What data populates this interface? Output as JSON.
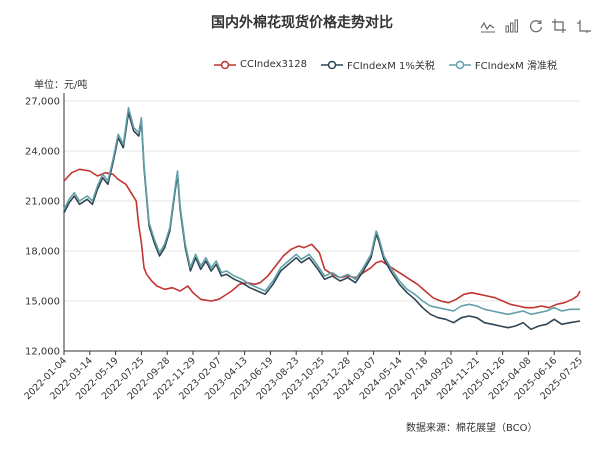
{
  "title": "国内外棉花现货价格走势对比",
  "toolbox": [
    "line-chart-icon",
    "bar-chart-icon",
    "restore-icon",
    "crop-icon",
    "crop-corner-icon"
  ],
  "unit_label": "单位：元/吨",
  "source_label": "数据来源：棉花展望（BCO）",
  "chart_data": {
    "type": "line",
    "title": "国内外棉花现货价格走势对比",
    "ylabel": "单位：元/吨",
    "ylim": [
      12000,
      27000
    ],
    "yticks": [
      12000,
      15000,
      18000,
      21000,
      24000,
      27000
    ],
    "ytick_labels": [
      "12,000",
      "15,000",
      "18,000",
      "21,000",
      "24,000",
      "27,000"
    ],
    "grid": true,
    "legend": "top-right",
    "x_tick_labels": [
      "2022-01-04",
      "2022-03-14",
      "2022-05-19",
      "2022-07-25",
      "2022-09-28",
      "2022-11-29",
      "2023-02-07",
      "2023-04-13",
      "2023-06-19",
      "2023-08-23",
      "2023-10-25",
      "2023-12-28",
      "2024-03-07",
      "2024-05-14",
      "2024-07-18",
      "2024-09-20",
      "2024-11-21",
      "2025-01-26",
      "2025-04-08",
      "2025-06-16",
      "2025-07-25"
    ],
    "series": [
      {
        "name": "CCIndex3128",
        "color": "#c23531",
        "points": [
          [
            0,
            22200
          ],
          [
            0.3,
            22700
          ],
          [
            0.6,
            22900
          ],
          [
            1,
            22800
          ],
          [
            1.3,
            22500
          ],
          [
            1.6,
            22700
          ],
          [
            1.9,
            22600
          ],
          [
            2.1,
            22300
          ],
          [
            2.4,
            22000
          ],
          [
            2.6,
            21500
          ],
          [
            2.8,
            21000
          ],
          [
            2.9,
            19500
          ],
          [
            3.0,
            18500
          ],
          [
            3.1,
            17000
          ],
          [
            3.2,
            16600
          ],
          [
            3.4,
            16200
          ],
          [
            3.6,
            15900
          ],
          [
            3.9,
            15700
          ],
          [
            4.2,
            15800
          ],
          [
            4.5,
            15600
          ],
          [
            4.8,
            15900
          ],
          [
            5.0,
            15500
          ],
          [
            5.3,
            15100
          ],
          [
            5.7,
            15000
          ],
          [
            6.0,
            15100
          ],
          [
            6.2,
            15300
          ],
          [
            6.5,
            15600
          ],
          [
            6.8,
            16000
          ],
          [
            7.1,
            16100
          ],
          [
            7.4,
            16000
          ],
          [
            7.6,
            16100
          ],
          [
            7.9,
            16500
          ],
          [
            8.2,
            17100
          ],
          [
            8.5,
            17700
          ],
          [
            8.8,
            18100
          ],
          [
            9.1,
            18300
          ],
          [
            9.3,
            18200
          ],
          [
            9.6,
            18400
          ],
          [
            9.9,
            17900
          ],
          [
            10.1,
            16900
          ],
          [
            10.4,
            16600
          ],
          [
            10.7,
            16400
          ],
          [
            11.0,
            16500
          ],
          [
            11.3,
            16400
          ],
          [
            11.6,
            16700
          ],
          [
            11.9,
            17000
          ],
          [
            12.1,
            17300
          ],
          [
            12.3,
            17400
          ],
          [
            12.5,
            17200
          ],
          [
            12.8,
            16900
          ],
          [
            13.1,
            16600
          ],
          [
            13.4,
            16300
          ],
          [
            13.7,
            16000
          ],
          [
            14.0,
            15600
          ],
          [
            14.3,
            15200
          ],
          [
            14.6,
            15000
          ],
          [
            14.9,
            14900
          ],
          [
            15.2,
            15100
          ],
          [
            15.5,
            15400
          ],
          [
            15.8,
            15500
          ],
          [
            16.1,
            15400
          ],
          [
            16.4,
            15300
          ],
          [
            16.7,
            15200
          ],
          [
            17.0,
            15000
          ],
          [
            17.3,
            14800
          ],
          [
            17.6,
            14700
          ],
          [
            17.9,
            14600
          ],
          [
            18.2,
            14600
          ],
          [
            18.5,
            14700
          ],
          [
            18.8,
            14600
          ],
          [
            19.1,
            14800
          ],
          [
            19.4,
            14900
          ],
          [
            19.7,
            15100
          ],
          [
            19.9,
            15300
          ],
          [
            20.0,
            15600
          ]
        ]
      },
      {
        "name": "FCIndexM 1%关税",
        "color": "#2f4554",
        "points": [
          [
            0,
            20300
          ],
          [
            0.2,
            20900
          ],
          [
            0.4,
            21300
          ],
          [
            0.6,
            20800
          ],
          [
            0.9,
            21100
          ],
          [
            1.1,
            20800
          ],
          [
            1.3,
            21700
          ],
          [
            1.5,
            22400
          ],
          [
            1.7,
            22000
          ],
          [
            1.9,
            23300
          ],
          [
            2.1,
            24800
          ],
          [
            2.3,
            24200
          ],
          [
            2.5,
            26300
          ],
          [
            2.7,
            25200
          ],
          [
            2.9,
            24900
          ],
          [
            3.0,
            25800
          ],
          [
            3.1,
            23000
          ],
          [
            3.2,
            21200
          ],
          [
            3.3,
            19500
          ],
          [
            3.5,
            18500
          ],
          [
            3.7,
            17700
          ],
          [
            3.9,
            18200
          ],
          [
            4.1,
            19200
          ],
          [
            4.3,
            21500
          ],
          [
            4.4,
            22600
          ],
          [
            4.5,
            20500
          ],
          [
            4.7,
            18200
          ],
          [
            4.9,
            16800
          ],
          [
            5.1,
            17600
          ],
          [
            5.3,
            16900
          ],
          [
            5.5,
            17400
          ],
          [
            5.7,
            16800
          ],
          [
            5.9,
            17200
          ],
          [
            6.1,
            16500
          ],
          [
            6.3,
            16600
          ],
          [
            6.6,
            16300
          ],
          [
            6.9,
            16100
          ],
          [
            7.2,
            15800
          ],
          [
            7.5,
            15600
          ],
          [
            7.8,
            15400
          ],
          [
            8.1,
            16000
          ],
          [
            8.4,
            16800
          ],
          [
            8.7,
            17200
          ],
          [
            9.0,
            17600
          ],
          [
            9.2,
            17300
          ],
          [
            9.5,
            17600
          ],
          [
            9.8,
            17000
          ],
          [
            10.1,
            16300
          ],
          [
            10.4,
            16500
          ],
          [
            10.7,
            16200
          ],
          [
            11.0,
            16400
          ],
          [
            11.3,
            16100
          ],
          [
            11.6,
            16800
          ],
          [
            11.9,
            17600
          ],
          [
            12.1,
            19000
          ],
          [
            12.2,
            18600
          ],
          [
            12.4,
            17500
          ],
          [
            12.7,
            16700
          ],
          [
            13.0,
            16000
          ],
          [
            13.3,
            15500
          ],
          [
            13.6,
            15100
          ],
          [
            13.9,
            14600
          ],
          [
            14.2,
            14200
          ],
          [
            14.5,
            14000
          ],
          [
            14.8,
            13900
          ],
          [
            15.1,
            13700
          ],
          [
            15.4,
            14000
          ],
          [
            15.7,
            14100
          ],
          [
            16.0,
            14000
          ],
          [
            16.3,
            13700
          ],
          [
            16.6,
            13600
          ],
          [
            16.9,
            13500
          ],
          [
            17.2,
            13400
          ],
          [
            17.5,
            13500
          ],
          [
            17.8,
            13700
          ],
          [
            18.1,
            13300
          ],
          [
            18.4,
            13500
          ],
          [
            18.7,
            13600
          ],
          [
            19.0,
            13900
          ],
          [
            19.3,
            13600
          ],
          [
            19.6,
            13700
          ],
          [
            20.0,
            13800
          ]
        ]
      },
      {
        "name": "FCIndexM 滑准税",
        "color": "#61a0a8",
        "points": [
          [
            0,
            20500
          ],
          [
            0.2,
            21100
          ],
          [
            0.4,
            21500
          ],
          [
            0.6,
            21000
          ],
          [
            0.9,
            21300
          ],
          [
            1.1,
            21000
          ],
          [
            1.3,
            21900
          ],
          [
            1.5,
            22600
          ],
          [
            1.7,
            22200
          ],
          [
            1.9,
            23500
          ],
          [
            2.1,
            25000
          ],
          [
            2.3,
            24400
          ],
          [
            2.5,
            26600
          ],
          [
            2.7,
            25400
          ],
          [
            2.9,
            25100
          ],
          [
            3.0,
            26000
          ],
          [
            3.1,
            23200
          ],
          [
            3.2,
            21400
          ],
          [
            3.3,
            19700
          ],
          [
            3.5,
            18700
          ],
          [
            3.7,
            17900
          ],
          [
            3.9,
            18400
          ],
          [
            4.1,
            19400
          ],
          [
            4.3,
            21700
          ],
          [
            4.4,
            22800
          ],
          [
            4.5,
            20700
          ],
          [
            4.7,
            18400
          ],
          [
            4.9,
            17000
          ],
          [
            5.1,
            17800
          ],
          [
            5.3,
            17100
          ],
          [
            5.5,
            17600
          ],
          [
            5.7,
            17000
          ],
          [
            5.9,
            17400
          ],
          [
            6.1,
            16700
          ],
          [
            6.3,
            16800
          ],
          [
            6.6,
            16500
          ],
          [
            6.9,
            16300
          ],
          [
            7.2,
            16000
          ],
          [
            7.5,
            15800
          ],
          [
            7.8,
            15600
          ],
          [
            8.1,
            16200
          ],
          [
            8.4,
            17000
          ],
          [
            8.7,
            17400
          ],
          [
            9.0,
            17800
          ],
          [
            9.2,
            17500
          ],
          [
            9.5,
            17800
          ],
          [
            9.8,
            17200
          ],
          [
            10.1,
            16500
          ],
          [
            10.4,
            16700
          ],
          [
            10.7,
            16400
          ],
          [
            11.0,
            16600
          ],
          [
            11.3,
            16300
          ],
          [
            11.6,
            17000
          ],
          [
            11.9,
            17800
          ],
          [
            12.1,
            19200
          ],
          [
            12.2,
            18800
          ],
          [
            12.4,
            17700
          ],
          [
            12.7,
            16900
          ],
          [
            13.0,
            16200
          ],
          [
            13.3,
            15700
          ],
          [
            13.6,
            15400
          ],
          [
            13.9,
            15000
          ],
          [
            14.2,
            14700
          ],
          [
            14.5,
            14600
          ],
          [
            14.8,
            14500
          ],
          [
            15.1,
            14400
          ],
          [
            15.4,
            14700
          ],
          [
            15.7,
            14800
          ],
          [
            16.0,
            14700
          ],
          [
            16.3,
            14500
          ],
          [
            16.6,
            14400
          ],
          [
            16.9,
            14300
          ],
          [
            17.2,
            14200
          ],
          [
            17.5,
            14300
          ],
          [
            17.8,
            14400
          ],
          [
            18.1,
            14200
          ],
          [
            18.4,
            14300
          ],
          [
            18.7,
            14400
          ],
          [
            19.0,
            14600
          ],
          [
            19.3,
            14400
          ],
          [
            19.6,
            14500
          ],
          [
            20.0,
            14500
          ]
        ]
      }
    ]
  }
}
